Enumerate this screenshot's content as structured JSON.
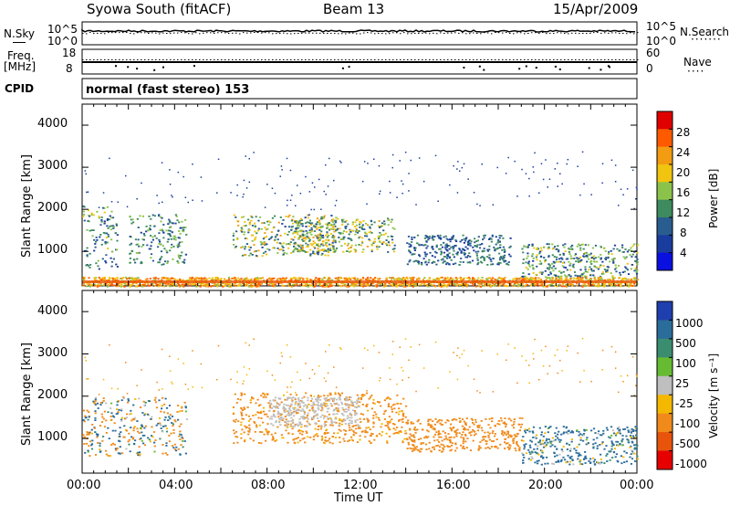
{
  "header": {
    "station": "Syowa South (fitACF)",
    "beam": "Beam 13",
    "date": "15/Apr/2009"
  },
  "panels": {
    "noise": {
      "left_label": "N.Sky",
      "right_label": "N.Search",
      "right_legend": "·······",
      "ticks_left": [
        "10^5",
        "10^0"
      ],
      "ticks_right": [
        "10^5",
        "10^0"
      ]
    },
    "freq": {
      "left_label_1": "Freq.",
      "left_label_2": "[MHz]",
      "right_label": "Nave",
      "right_legend": "····",
      "ticks_left": [
        "18",
        "8"
      ],
      "ticks_right": [
        "60",
        "0"
      ]
    },
    "cpid": {
      "label": "CPID",
      "text": "normal (fast stereo) 153"
    }
  },
  "axes": {
    "xlabel": "Time UT",
    "ylabel": "Slant Range [km]",
    "xticks": [
      "00:00",
      "04:00",
      "08:00",
      "12:00",
      "16:00",
      "20:00",
      "00:00"
    ],
    "yticks": [
      "4000",
      "3000",
      "2000",
      "1000"
    ]
  },
  "colorbars": {
    "power": {
      "label": "Power [dB]",
      "ticks": [
        "28",
        "24",
        "20",
        "16",
        "12",
        "8",
        "4"
      ],
      "colors": [
        "#e00000",
        "#ff5a00",
        "#f39c12",
        "#f1c40f",
        "#8bc34a",
        "#3d8b5e",
        "#2a5d8f",
        "#1a3c9e",
        "#0a10e0"
      ]
    },
    "velocity": {
      "label": "Velocity [m s⁻¹]",
      "ticks": [
        "1000",
        "500",
        "100",
        "25",
        "-25",
        "-100",
        "-500",
        "-1000"
      ],
      "colors": [
        "#1f3fae",
        "#2a6d9a",
        "#3a8d6f",
        "#66bb33",
        "#bfbfbf",
        "#f5b800",
        "#f08a1a",
        "#e8540c",
        "#e60000"
      ]
    }
  },
  "chart_data": [
    {
      "type": "heatmap",
      "title": "Power",
      "xlabel": "Time UT",
      "ylabel": "Slant Range [km]",
      "xlim": [
        "00:00",
        "24:00"
      ],
      "ylim": [
        180,
        4500
      ],
      "colorbar_label": "Power [dB]",
      "colorbar_range": [
        0,
        32
      ],
      "features": [
        {
          "time": [
            "00:00",
            "01:30"
          ],
          "range": [
            600,
            2100
          ],
          "power_db": [
            4,
            20
          ]
        },
        {
          "time": [
            "02:00",
            "04:30"
          ],
          "range": [
            700,
            1900
          ],
          "power_db": [
            6,
            18
          ]
        },
        {
          "time": [
            "06:30",
            "11:00"
          ],
          "range": [
            900,
            1900
          ],
          "power_db": [
            6,
            24
          ]
        },
        {
          "time": [
            "09:00",
            "13:30"
          ],
          "range": [
            1000,
            1800
          ],
          "power_db": [
            8,
            22
          ]
        },
        {
          "time": [
            "14:00",
            "18:30"
          ],
          "range": [
            700,
            1400
          ],
          "power_db": [
            4,
            14
          ]
        },
        {
          "time": [
            "19:00",
            "24:00"
          ],
          "range": [
            400,
            1200
          ],
          "power_db": [
            4,
            20
          ]
        },
        {
          "time": [
            "00:00",
            "24:00"
          ],
          "range": [
            180,
            400
          ],
          "power_db": [
            16,
            28
          ]
        }
      ]
    },
    {
      "type": "heatmap",
      "title": "Velocity",
      "xlabel": "Time UT",
      "ylabel": "Slant Range [km]",
      "xlim": [
        "00:00",
        "24:00"
      ],
      "ylim": [
        180,
        4500
      ],
      "colorbar_label": "Velocity [m s⁻¹]",
      "colorbar_range": [
        -1000,
        1000
      ],
      "features": [
        {
          "time": [
            "00:00",
            "04:30"
          ],
          "range": [
            600,
            2000
          ],
          "velocity": [
            -500,
            500
          ]
        },
        {
          "time": [
            "06:30",
            "14:00"
          ],
          "range": [
            900,
            2100
          ],
          "velocity": [
            -500,
            -25
          ]
        },
        {
          "time": [
            "08:00",
            "12:00"
          ],
          "range": [
            1300,
            2000
          ],
          "velocity": [
            -25,
            25
          ]
        },
        {
          "time": [
            "14:00",
            "19:00"
          ],
          "range": [
            700,
            1500
          ],
          "velocity": [
            -500,
            -100
          ]
        },
        {
          "time": [
            "19:00",
            "24:00"
          ],
          "range": [
            400,
            1300
          ],
          "velocity": [
            -100,
            500
          ]
        }
      ]
    }
  ]
}
